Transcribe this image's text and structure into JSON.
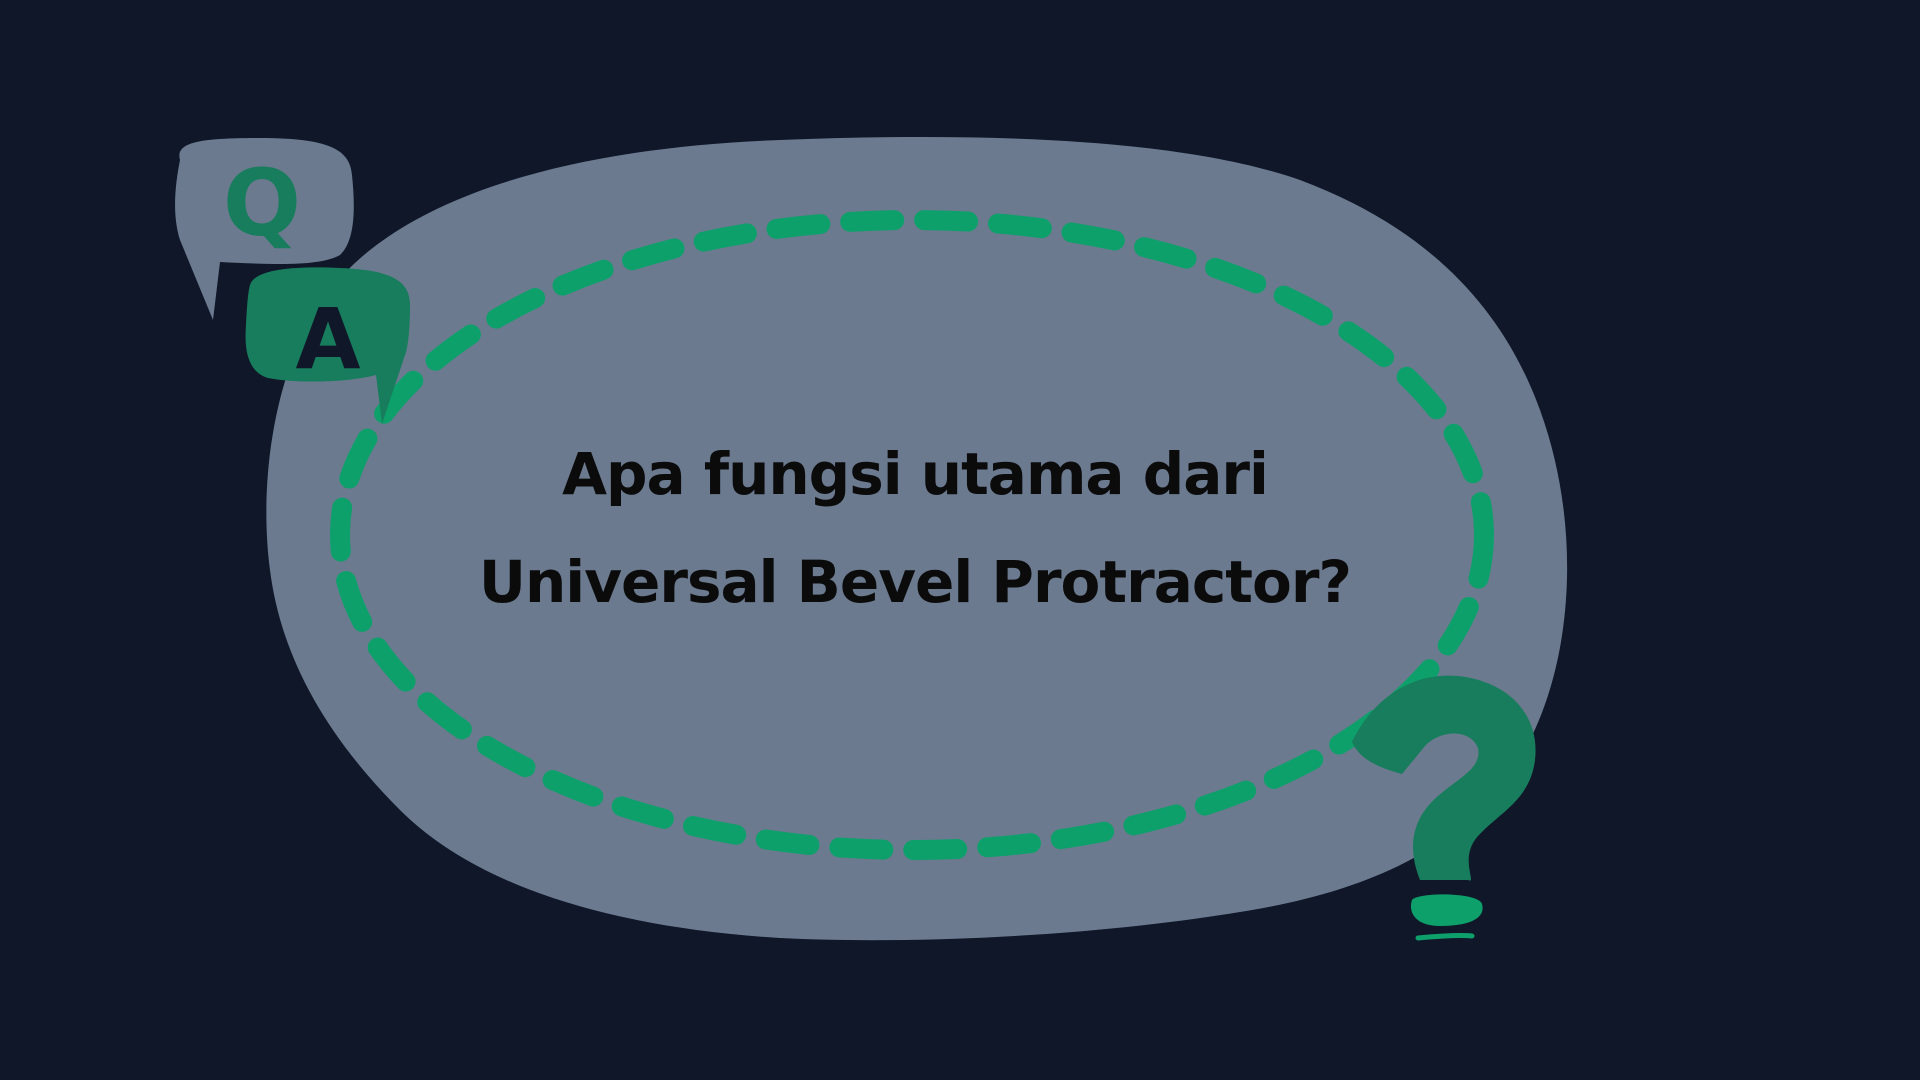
{
  "slide": {
    "background_color": "#0f1729",
    "bubble_color": "#6b7a8f",
    "accent_color": "#0ea06b",
    "accent_dark_color": "#177d5c"
  },
  "qa_icon": {
    "q_letter": "Q",
    "a_letter": "A"
  },
  "question": {
    "line1": "Apa fungsi utama dari",
    "line2": "Universal Bevel Protractor?"
  },
  "decoration": {
    "question_mark_icon": "question-mark-icon"
  }
}
